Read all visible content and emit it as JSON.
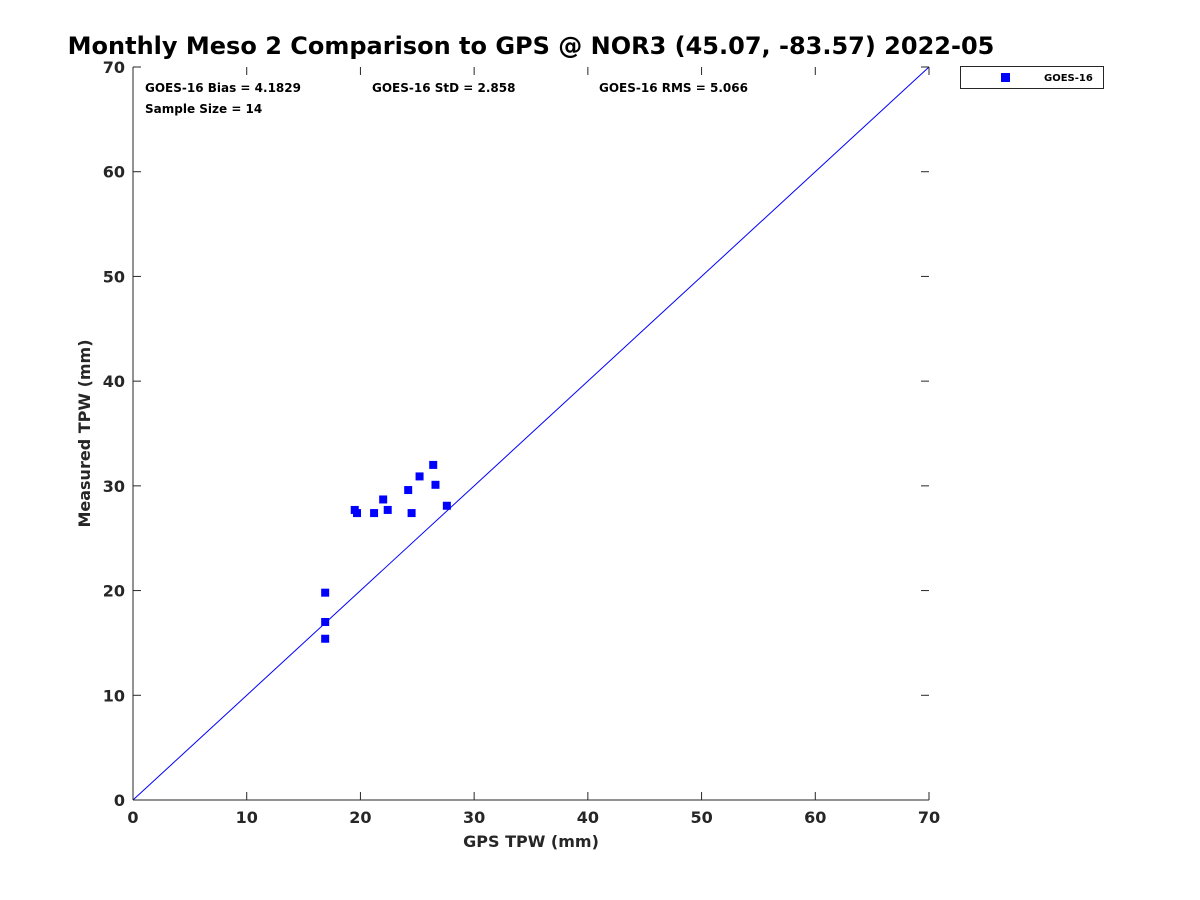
{
  "chart_data": {
    "type": "scatter",
    "title": "Monthly Meso 2 Comparison to GPS @ NOR3 (45.07, -83.57) 2022-05",
    "xlabel": "GPS TPW (mm)",
    "ylabel": "Measured TPW (mm)",
    "xlim": [
      0,
      70
    ],
    "ylim": [
      0,
      70
    ],
    "xticks": [
      0,
      10,
      20,
      30,
      40,
      50,
      60,
      70
    ],
    "yticks": [
      0,
      10,
      20,
      30,
      40,
      50,
      60,
      70
    ],
    "grid": false,
    "legend_position": "outside-top-right",
    "series": [
      {
        "name": "GOES-16",
        "color": "#0000ff",
        "marker": "square",
        "points": [
          {
            "x": 16.9,
            "y": 19.8
          },
          {
            "x": 16.9,
            "y": 17.0
          },
          {
            "x": 16.9,
            "y": 15.4
          },
          {
            "x": 19.5,
            "y": 27.7
          },
          {
            "x": 19.7,
            "y": 27.4
          },
          {
            "x": 21.2,
            "y": 27.4
          },
          {
            "x": 22.0,
            "y": 28.7
          },
          {
            "x": 22.4,
            "y": 27.7
          },
          {
            "x": 24.2,
            "y": 29.6
          },
          {
            "x": 24.5,
            "y": 27.4
          },
          {
            "x": 25.2,
            "y": 30.9
          },
          {
            "x": 26.4,
            "y": 32.0
          },
          {
            "x": 26.6,
            "y": 30.1
          },
          {
            "x": 27.6,
            "y": 28.1
          }
        ]
      }
    ],
    "reference_line": {
      "from": [
        0,
        0
      ],
      "to": [
        70,
        70
      ],
      "color": "#0000ff"
    },
    "annotations": [
      "GOES-16 Bias = 4.1829",
      "GOES-16 StD = 2.858",
      "GOES-16 RMS = 5.066",
      "Sample Size = 14"
    ]
  }
}
